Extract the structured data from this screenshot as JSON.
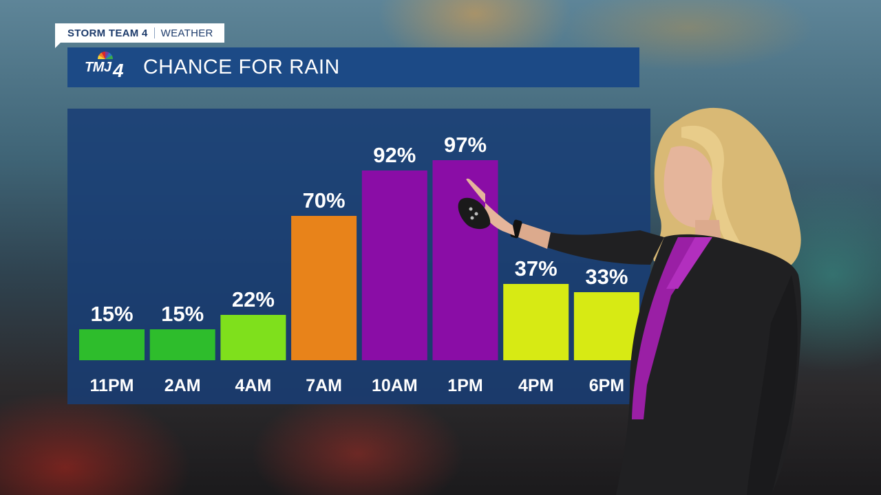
{
  "brand": {
    "team": "STORM TEAM 4",
    "section": "WEATHER"
  },
  "station": {
    "call_letters": "TMJ",
    "channel": "4"
  },
  "title": "CHANCE FOR RAIN",
  "colors": {
    "panel": "#183e76",
    "title_bar": "#1c4a86"
  },
  "chart_data": {
    "type": "bar",
    "title": "CHANCE FOR RAIN",
    "categories": [
      "11PM",
      "2AM",
      "4AM",
      "7AM",
      "10AM",
      "1PM",
      "4PM",
      "6PM"
    ],
    "values": [
      15,
      15,
      22,
      70,
      92,
      97,
      37,
      33
    ],
    "value_labels": [
      "15%",
      "15%",
      "22%",
      "70%",
      "92%",
      "97%",
      "37%",
      "33%"
    ],
    "bar_colors": [
      "#2ebd2c",
      "#2ebd2c",
      "#7fe01c",
      "#e8831a",
      "#8a0da6",
      "#8a0da6",
      "#d7ea14",
      "#d7ea14"
    ],
    "ylim": [
      0,
      100
    ],
    "xlabel": "",
    "ylabel": ""
  }
}
